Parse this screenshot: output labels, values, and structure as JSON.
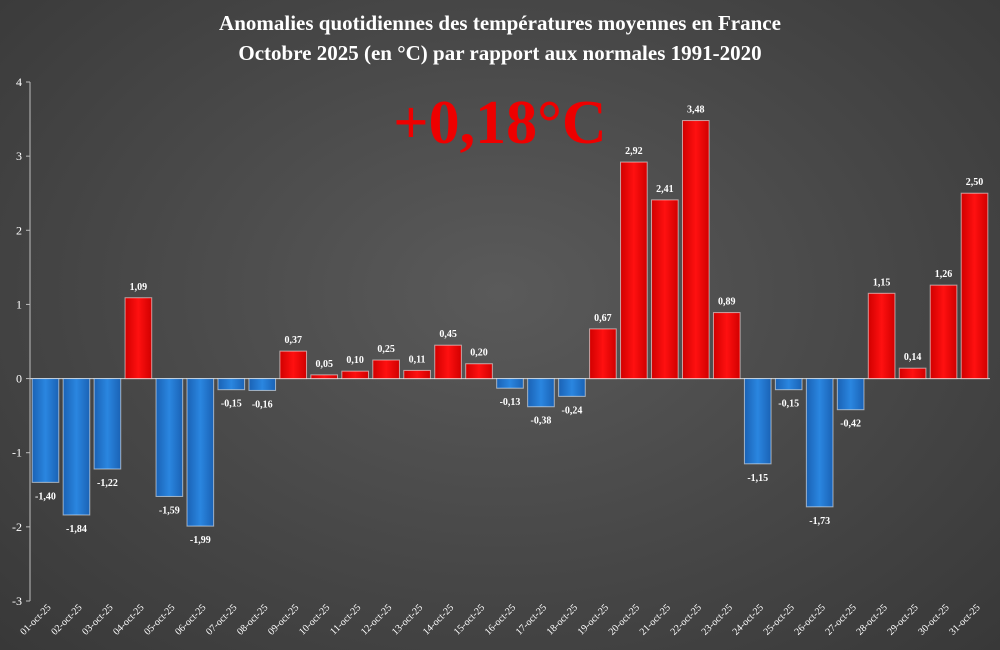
{
  "chart_data": {
    "type": "bar",
    "title": "Anomalies quotidiennes des températures moyennes en France",
    "subtitle": "Octobre 2025 (en °C) par rapport aux normales 1991-2020",
    "annotation": "+0,18°C",
    "annotation_color": "#ee0000",
    "xlabel": "",
    "ylabel": "",
    "ylim": [
      -3,
      4
    ],
    "yticks": [
      4,
      3,
      2,
      1,
      0,
      -1,
      -2,
      -3
    ],
    "grid": false,
    "positive_color": "#ff0000",
    "negative_color": "#1f77d4",
    "categories": [
      "01-oct-25",
      "02-oct-25",
      "03-oct-25",
      "04-oct-25",
      "05-oct-25",
      "06-oct-25",
      "07-oct-25",
      "08-oct-25",
      "09-oct-25",
      "10-oct-25",
      "11-oct-25",
      "12-oct-25",
      "13-oct-25",
      "14-oct-25",
      "15-oct-25",
      "16-oct-25",
      "17-oct-25",
      "18-oct-25",
      "19-oct-25",
      "20-oct-25",
      "21-oct-25",
      "22-oct-25",
      "23-oct-25",
      "24-oct-25",
      "25-oct-25",
      "26-oct-25",
      "27-oct-25",
      "28-oct-25",
      "29-oct-25",
      "30-oct-25",
      "31-oct-25"
    ],
    "values": [
      -1.4,
      -1.84,
      -1.22,
      1.09,
      -1.59,
      -1.99,
      -0.15,
      -0.16,
      0.37,
      0.05,
      0.1,
      0.25,
      0.11,
      0.45,
      0.2,
      -0.13,
      -0.38,
      -0.24,
      0.67,
      2.92,
      2.41,
      3.48,
      0.89,
      -1.15,
      -0.15,
      -1.73,
      -0.42,
      1.15,
      0.14,
      1.26,
      2.5
    ],
    "value_labels": [
      "-1,40",
      "-1,84",
      "-1,22",
      "1,09",
      "-1,59",
      "-1,99",
      "-0,15",
      "-0,16",
      "0,37",
      "0,05",
      "0,10",
      "0,25",
      "0,11",
      "0,45",
      "0,20",
      "-0,13",
      "-0,38",
      "-0,24",
      "0,67",
      "2,92",
      "2,41",
      "3,48",
      "0,89",
      "-1,15",
      "-0,15",
      "-1,73",
      "-0,42",
      "1,15",
      "0,14",
      "1,26",
      "2,50"
    ]
  }
}
